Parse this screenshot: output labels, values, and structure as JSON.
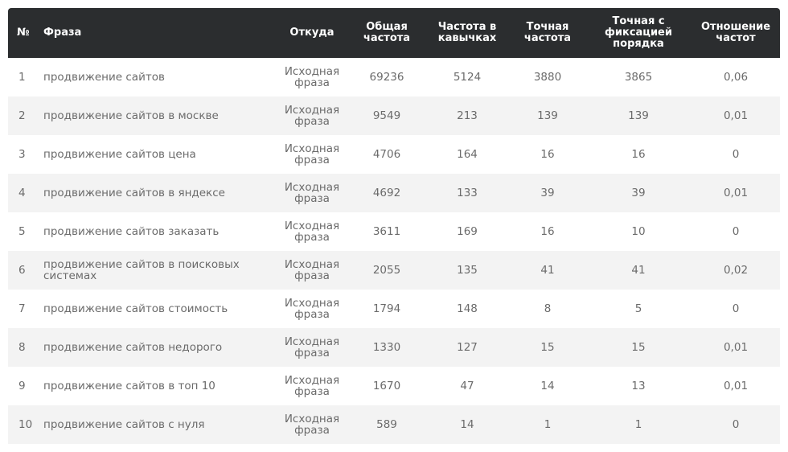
{
  "headers": {
    "num": "№",
    "phrase": "Фраза",
    "source": "Откуда",
    "total": "Общая частота",
    "quoted": "Частота в кавычках",
    "exact": "Точная частота",
    "exact_order": "Точная с фиксацией порядка",
    "ratio": "Отношение частот"
  },
  "rows": [
    {
      "num": "1",
      "phrase": "продвижение сайтов",
      "source": "Исходная фраза",
      "total": "69236",
      "quoted": "5124",
      "exact": "3880",
      "exact_order": "3865",
      "ratio": "0,06"
    },
    {
      "num": "2",
      "phrase": "продвижение сайтов в москве",
      "source": "Исходная фраза",
      "total": "9549",
      "quoted": "213",
      "exact": "139",
      "exact_order": "139",
      "ratio": "0,01"
    },
    {
      "num": "3",
      "phrase": "продвижение сайтов цена",
      "source": "Исходная фраза",
      "total": "4706",
      "quoted": "164",
      "exact": "16",
      "exact_order": "16",
      "ratio": "0"
    },
    {
      "num": "4",
      "phrase": "продвижение сайтов в яндексе",
      "source": "Исходная фраза",
      "total": "4692",
      "quoted": "133",
      "exact": "39",
      "exact_order": "39",
      "ratio": "0,01"
    },
    {
      "num": "5",
      "phrase": "продвижение сайтов заказать",
      "source": "Исходная фраза",
      "total": "3611",
      "quoted": "169",
      "exact": "16",
      "exact_order": "10",
      "ratio": "0"
    },
    {
      "num": "6",
      "phrase": "продвижение сайтов в поисковых системах",
      "source": "Исходная фраза",
      "total": "2055",
      "quoted": "135",
      "exact": "41",
      "exact_order": "41",
      "ratio": "0,02"
    },
    {
      "num": "7",
      "phrase": "продвижение сайтов стоимость",
      "source": "Исходная фраза",
      "total": "1794",
      "quoted": "148",
      "exact": "8",
      "exact_order": "5",
      "ratio": "0"
    },
    {
      "num": "8",
      "phrase": "продвижение сайтов недорого",
      "source": "Исходная фраза",
      "total": "1330",
      "quoted": "127",
      "exact": "15",
      "exact_order": "15",
      "ratio": "0,01"
    },
    {
      "num": "9",
      "phrase": "продвижение сайтов в топ 10",
      "source": "Исходная фраза",
      "total": "1670",
      "quoted": "47",
      "exact": "14",
      "exact_order": "13",
      "ratio": "0,01"
    },
    {
      "num": "10",
      "phrase": "продвижение сайтов с нуля",
      "source": "Исходная фраза",
      "total": "589",
      "quoted": "14",
      "exact": "1",
      "exact_order": "1",
      "ratio": "0"
    }
  ]
}
